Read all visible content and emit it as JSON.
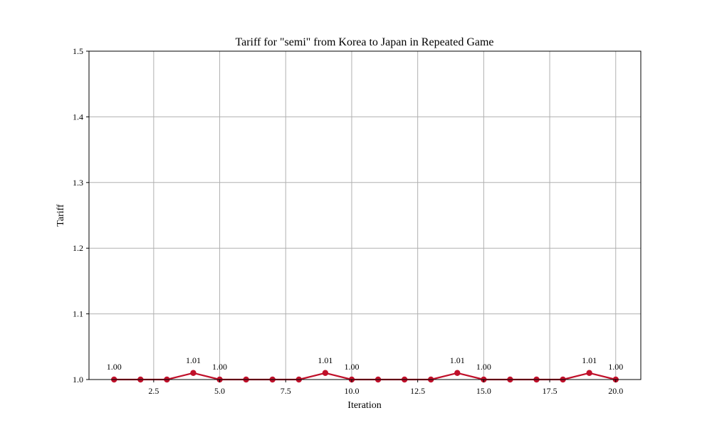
{
  "colors": {
    "line": "#c0102a",
    "grid": "#b0b0b0",
    "axis": "#000000",
    "background": "#ffffff"
  },
  "chart_data": {
    "type": "line",
    "title": "Tariff for \"semi\" from Korea to Japan in Repeated Game",
    "xlabel": "Iteration",
    "ylabel": "Tariff",
    "xlim": [
      0.05,
      20.95
    ],
    "ylim": [
      1.0,
      1.5
    ],
    "xticks": [
      2.5,
      5.0,
      7.5,
      10.0,
      12.5,
      15.0,
      17.5,
      20.0
    ],
    "xtick_labels": [
      "2.5",
      "5.0",
      "7.5",
      "10.0",
      "12.5",
      "15.0",
      "17.5",
      "20.0"
    ],
    "yticks": [
      1.0,
      1.1,
      1.2,
      1.3,
      1.4,
      1.5
    ],
    "ytick_labels": [
      "1.0",
      "1.1",
      "1.2",
      "1.3",
      "1.4",
      "1.5"
    ],
    "grid": true,
    "series": [
      {
        "x": [
          1,
          2,
          3,
          4,
          5,
          6,
          7,
          8,
          9,
          10,
          11,
          12,
          13,
          14,
          15,
          16,
          17,
          18,
          19,
          20
        ],
        "values": [
          1.0,
          1.0,
          1.0,
          1.01,
          1.0,
          1.0,
          1.0,
          1.0,
          1.01,
          1.0,
          1.0,
          1.0,
          1.0,
          1.01,
          1.0,
          1.0,
          1.0,
          1.0,
          1.01,
          1.0
        ],
        "color": "#c0102a"
      }
    ],
    "annotations": [
      {
        "x": 1,
        "y": 1.0,
        "text": "1.00"
      },
      {
        "x": 4,
        "y": 1.01,
        "text": "1.01"
      },
      {
        "x": 5,
        "y": 1.0,
        "text": "1.00"
      },
      {
        "x": 9,
        "y": 1.01,
        "text": "1.01"
      },
      {
        "x": 10,
        "y": 1.0,
        "text": "1.00"
      },
      {
        "x": 14,
        "y": 1.01,
        "text": "1.01"
      },
      {
        "x": 15,
        "y": 1.0,
        "text": "1.00"
      },
      {
        "x": 19,
        "y": 1.01,
        "text": "1.01"
      },
      {
        "x": 20,
        "y": 1.0,
        "text": "1.00"
      }
    ]
  }
}
